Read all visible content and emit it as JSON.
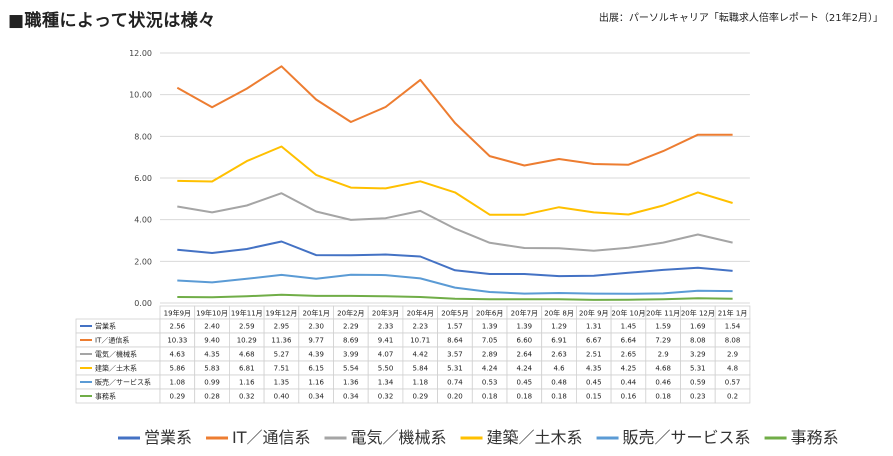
{
  "page": {
    "title": "■職種によって状況は様々",
    "source": "出展：パーソルキャリア「転職求人倍率レポート（21年2月）」"
  },
  "chart_data": {
    "type": "line",
    "title": "",
    "xlabel": "",
    "ylabel": "",
    "ylim": [
      0,
      12
    ],
    "yticks": [
      "0.00",
      "2.00",
      "4.00",
      "6.00",
      "8.00",
      "10.00",
      "12.00"
    ],
    "grid": true,
    "legend_position": "bottom",
    "categories": [
      "19年9月",
      "19年10月",
      "19年11月",
      "19年12月",
      "20年1月",
      "20年2月",
      "20年3月",
      "20年4月",
      "20年5月",
      "20年6月",
      "20年7月",
      "20年 8月",
      "20年 9月",
      "20年 10月",
      "20年 11月",
      "20年 12月",
      "21年 1月"
    ],
    "series": [
      {
        "name": "営業系",
        "color": "#4472c4",
        "values": [
          2.56,
          2.4,
          2.59,
          2.95,
          2.3,
          2.29,
          2.33,
          2.23,
          1.57,
          1.39,
          1.39,
          1.29,
          1.31,
          1.45,
          1.59,
          1.69,
          1.54
        ],
        "labels": [
          "2.56",
          "2.40",
          "2.59",
          "2.95",
          "2.30",
          "2.29",
          "2.33",
          "2.23",
          "1.57",
          "1.39",
          "1.39",
          "1.29",
          "1.31",
          "1.45",
          "1.59",
          "1.69",
          "1.54"
        ]
      },
      {
        "name": "IT／通信系",
        "color": "#ed7d31",
        "values": [
          10.33,
          9.4,
          10.29,
          11.36,
          9.77,
          8.69,
          9.41,
          10.71,
          8.64,
          7.05,
          6.6,
          6.91,
          6.67,
          6.64,
          7.29,
          8.08,
          8.08
        ],
        "labels": [
          "10.33",
          "9.40",
          "10.29",
          "11.36",
          "9.77",
          "8.69",
          "9.41",
          "10.71",
          "8.64",
          "7.05",
          "6.60",
          "6.91",
          "6.67",
          "6.64",
          "7.29",
          "8.08",
          "8.08"
        ]
      },
      {
        "name": "電気／機械系",
        "color": "#a5a5a5",
        "values": [
          4.63,
          4.35,
          4.68,
          5.27,
          4.39,
          3.99,
          4.07,
          4.42,
          3.57,
          2.89,
          2.64,
          2.63,
          2.51,
          2.65,
          2.9,
          3.29,
          2.9
        ],
        "labels": [
          "4.63",
          "4.35",
          "4.68",
          "5.27",
          "4.39",
          "3.99",
          "4.07",
          "4.42",
          "3.57",
          "2.89",
          "2.64",
          "2.63",
          "2.51",
          "2.65",
          "2.9",
          "3.29",
          "2.9"
        ]
      },
      {
        "name": "建築／土木系",
        "color": "#ffc000",
        "values": [
          5.86,
          5.83,
          6.81,
          7.51,
          6.15,
          5.54,
          5.5,
          5.84,
          5.31,
          4.24,
          4.24,
          4.6,
          4.35,
          4.25,
          4.68,
          5.31,
          4.8
        ],
        "labels": [
          "5.86",
          "5.83",
          "6.81",
          "7.51",
          "6.15",
          "5.54",
          "5.50",
          "5.84",
          "5.31",
          "4.24",
          "4.24",
          "4.6",
          "4.35",
          "4.25",
          "4.68",
          "5.31",
          "4.8"
        ]
      },
      {
        "name": "販売／サービス系",
        "color": "#5b9bd5",
        "values": [
          1.08,
          0.99,
          1.16,
          1.35,
          1.16,
          1.36,
          1.34,
          1.18,
          0.74,
          0.53,
          0.45,
          0.48,
          0.45,
          0.44,
          0.46,
          0.59,
          0.57
        ],
        "labels": [
          "1.08",
          "0.99",
          "1.16",
          "1.35",
          "1.16",
          "1.36",
          "1.34",
          "1.18",
          "0.74",
          "0.53",
          "0.45",
          "0.48",
          "0.45",
          "0.44",
          "0.46",
          "0.59",
          "0.57"
        ]
      },
      {
        "name": "事務系",
        "color": "#70ad47",
        "values": [
          0.29,
          0.28,
          0.32,
          0.4,
          0.34,
          0.34,
          0.32,
          0.29,
          0.2,
          0.18,
          0.18,
          0.18,
          0.15,
          0.16,
          0.18,
          0.23,
          0.2
        ],
        "labels": [
          "0.29",
          "0.28",
          "0.32",
          "0.40",
          "0.34",
          "0.34",
          "0.32",
          "0.29",
          "0.20",
          "0.18",
          "0.18",
          "0.18",
          "0.15",
          "0.16",
          "0.18",
          "0.23",
          "0.2"
        ]
      }
    ]
  }
}
